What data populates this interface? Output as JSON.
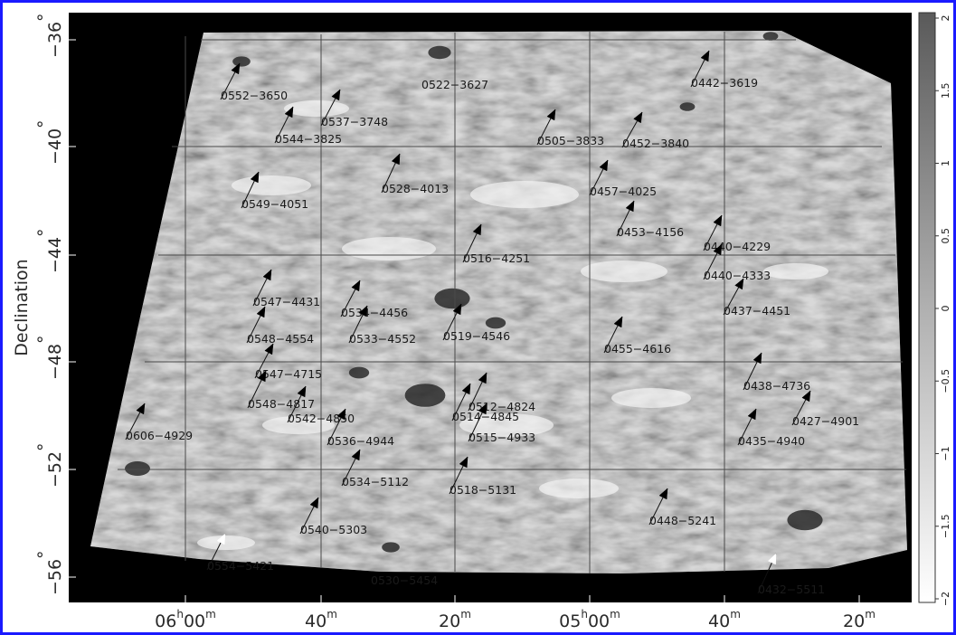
{
  "y_axis": {
    "label": "Declination",
    "ticks": [
      {
        "text": "−36",
        "sup": "°"
      },
      {
        "text": "−40",
        "sup": "°"
      },
      {
        "text": "−44",
        "sup": "°"
      },
      {
        "text": "−48",
        "sup": "°"
      },
      {
        "text": "−52",
        "sup": "°"
      },
      {
        "text": "−56",
        "sup": "°"
      }
    ]
  },
  "x_axis": {
    "ticks": [
      {
        "main": "06",
        "sup1": "h",
        "main2": "00",
        "sup2": "m"
      },
      {
        "main": "40",
        "sup1": "m",
        "main2": "",
        "sup2": ""
      },
      {
        "main": "20",
        "sup1": "m",
        "main2": "",
        "sup2": ""
      },
      {
        "main": "05",
        "sup1": "h",
        "main2": "00",
        "sup2": "m"
      },
      {
        "main": "40",
        "sup1": "m",
        "main2": "",
        "sup2": ""
      },
      {
        "main": "20",
        "sup1": "m",
        "main2": "",
        "sup2": ""
      }
    ]
  },
  "colorbar": {
    "ticks": [
      "2",
      "1.5",
      "1",
      "0.5",
      "0",
      "−0.5",
      "−1",
      "−1.5",
      "−2"
    ]
  },
  "objects": [
    {
      "label": "0552−3650",
      "arrow": "black"
    },
    {
      "label": "0522−3627",
      "arrow": "none"
    },
    {
      "label": "0442−3619",
      "arrow": "black"
    },
    {
      "label": "0537−3748",
      "arrow": "black"
    },
    {
      "label": "0544−3825",
      "arrow": "black"
    },
    {
      "label": "0505−3833",
      "arrow": "black"
    },
    {
      "label": "0452−3840",
      "arrow": "black"
    },
    {
      "label": "0528−4013",
      "arrow": "black"
    },
    {
      "label": "0457−4025",
      "arrow": "black"
    },
    {
      "label": "0549−4051",
      "arrow": "black"
    },
    {
      "label": "0453−4156",
      "arrow": "black"
    },
    {
      "label": "0440−4229",
      "arrow": "black"
    },
    {
      "label": "0516−4251",
      "arrow": "black"
    },
    {
      "label": "0440−4333",
      "arrow": "black"
    },
    {
      "label": "0547−4431",
      "arrow": "black"
    },
    {
      "label": "0534−4456",
      "arrow": "black"
    },
    {
      "label": "0437−4451",
      "arrow": "black"
    },
    {
      "label": "0548−4554",
      "arrow": "black"
    },
    {
      "label": "0533−4552",
      "arrow": "black"
    },
    {
      "label": "0519−4546",
      "arrow": "black"
    },
    {
      "label": "0455−4616",
      "arrow": "black"
    },
    {
      "label": "0547−4715",
      "arrow": "black"
    },
    {
      "label": "0438−4736",
      "arrow": "black"
    },
    {
      "label": "0548−4817",
      "arrow": "black"
    },
    {
      "label": "0512−4824",
      "arrow": "black"
    },
    {
      "label": "0542−4850",
      "arrow": "black"
    },
    {
      "label": "0514−4845",
      "arrow": "black"
    },
    {
      "label": "0427−4901",
      "arrow": "black"
    },
    {
      "label": "0606−4929",
      "arrow": "black"
    },
    {
      "label": "0536−4944",
      "arrow": "black"
    },
    {
      "label": "0515−4933",
      "arrow": "black"
    },
    {
      "label": "0435−4940",
      "arrow": "black"
    },
    {
      "label": "0534−5112",
      "arrow": "black"
    },
    {
      "label": "0518−5131",
      "arrow": "black"
    },
    {
      "label": "0448−5241",
      "arrow": "black"
    },
    {
      "label": "0540−5303",
      "arrow": "black"
    },
    {
      "label": "0554−5421",
      "arrow": "white"
    },
    {
      "label": "0530−5454",
      "arrow": "none"
    },
    {
      "label": "0432−5511",
      "arrow": "white"
    }
  ],
  "colors": {
    "background": "#000000",
    "frame": "#1a1aff",
    "map_mid_gray": "#aaaaaa",
    "grid": "#555555"
  }
}
